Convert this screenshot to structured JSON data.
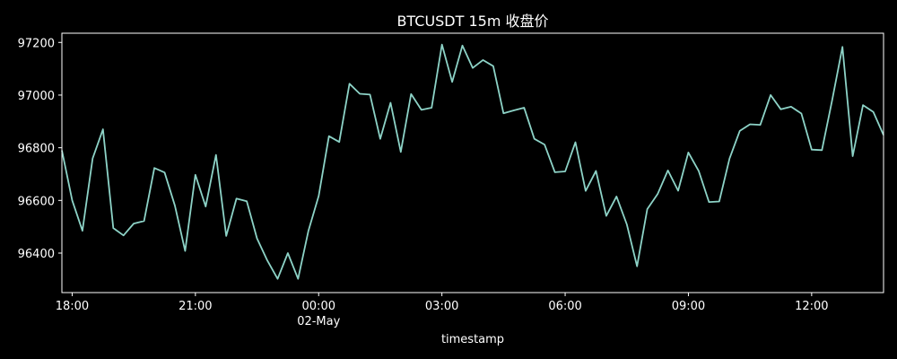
{
  "chart_data": {
    "type": "line",
    "title": "BTCUSDT 15m 收盘价",
    "xlabel": "timestamp",
    "ylabel": "",
    "x_start": "2025-05-01 17:45",
    "x_interval_minutes": 15,
    "xlim": [
      "2025-05-01 17:45",
      "2025-05-02 13:45"
    ],
    "ylim": [
      96250,
      97235
    ],
    "x_ticks": [
      {
        "label": "18:00",
        "time": "2025-05-01 18:00",
        "sublabel": ""
      },
      {
        "label": "21:00",
        "time": "2025-05-01 21:00",
        "sublabel": ""
      },
      {
        "label": "00:00",
        "time": "2025-05-02 00:00",
        "sublabel": "02-May"
      },
      {
        "label": "03:00",
        "time": "2025-05-02 03:00",
        "sublabel": ""
      },
      {
        "label": "06:00",
        "time": "2025-05-02 06:00",
        "sublabel": ""
      },
      {
        "label": "09:00",
        "time": "2025-05-02 09:00",
        "sublabel": ""
      },
      {
        "label": "12:00",
        "time": "2025-05-02 12:00",
        "sublabel": ""
      }
    ],
    "y_ticks": [
      96400,
      96600,
      96800,
      97000,
      97200
    ],
    "grid": false,
    "legend": "none",
    "line_color": "#8dd3c7",
    "series": [
      {
        "values": [
          96790,
          96600,
          96485,
          96760,
          96870,
          96495,
          96467,
          96512,
          96522,
          96723,
          96706,
          96580,
          96408,
          96697,
          96577,
          96773,
          96465,
          96607,
          96597,
          96456,
          96372,
          96302,
          96400,
          96302,
          96484,
          96617,
          96844,
          96822,
          97043,
          97005,
          97002,
          96834,
          96971,
          96784,
          97004,
          96944,
          96952,
          97192,
          97050,
          97188,
          97103,
          97133,
          97110,
          96931,
          96942,
          96952,
          96834,
          96812,
          96707,
          96710,
          96821,
          96636,
          96712,
          96541,
          96615,
          96509,
          96350,
          96567,
          96624,
          96714,
          96637,
          96782,
          96712,
          96594,
          96596,
          96759,
          96864,
          96889,
          96887,
          97000,
          96946,
          96956,
          96930,
          96793,
          96791,
          96982,
          97183,
          96768,
          96962,
          96936,
          96848
        ]
      }
    ]
  }
}
